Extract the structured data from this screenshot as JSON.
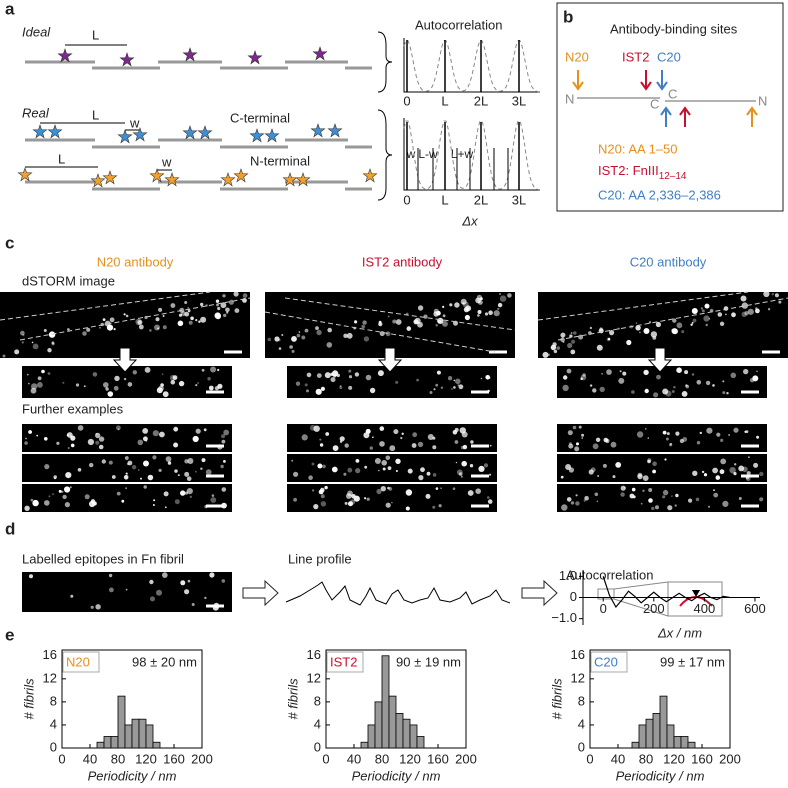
{
  "panels": [
    "a",
    "b",
    "c",
    "d",
    "e"
  ],
  "panel_a": {
    "ideal": "Ideal",
    "ideal_L": "L",
    "real": "Real",
    "c_L": "L",
    "c_w": "w",
    "c_terminal": "C-terminal",
    "n_L": "L",
    "n_w": "w",
    "n_terminal": "N-terminal",
    "autocorrelation": "Autocorrelation",
    "ticks_top": [
      "0",
      "L",
      "2L",
      "3L"
    ],
    "peaks_bottom": [
      "w",
      "L-w",
      "L+w"
    ],
    "ticks_bottom": [
      "0",
      "L",
      "2L",
      "3L"
    ],
    "x_label": "Δx"
  },
  "panel_b": {
    "title": "Antibody-binding sites",
    "n20": "N20",
    "ist2": "IST2",
    "c20": "C20",
    "n_left": "N",
    "c_left": "C",
    "c_right": "C",
    "n_right": "N",
    "n20_site": "N20: AA 1–50",
    "ist2_site": "IST2: FnIII",
    "ist2_sub": "12–14",
    "c20_site": "C20: AA 2,336–2,386"
  },
  "panel_c": {
    "headings": [
      "N20 antibody",
      "IST2 antibody",
      "C20 antibody"
    ],
    "dstorm": "dSTORM image",
    "further": "Further examples"
  },
  "panel_d": {
    "labelled": "Labelled epitopes in Fn fibril",
    "line_profile": "Line profile"
  },
  "chart_data": [
    {
      "type": "line",
      "title": "Autocorrelation",
      "x_label": "Δx / nm",
      "color": "#000000",
      "x": [
        0,
        25,
        50,
        75,
        100,
        125,
        150,
        175,
        200,
        225,
        250,
        275,
        300,
        325,
        350,
        375,
        400,
        425,
        450,
        475,
        500
      ],
      "values": [
        1.0,
        0.1,
        -0.45,
        -0.1,
        0.3,
        0.05,
        -0.25,
        0.0,
        0.25,
        0.0,
        -0.2,
        0.0,
        0.2,
        0.0,
        -0.15,
        0.05,
        0.2,
        0.0,
        -0.1,
        0.05,
        0.0
      ],
      "xlim": [
        -80,
        620
      ],
      "ylim": [
        -1.3,
        1.3
      ],
      "xticks": [
        0,
        200,
        400,
        600
      ],
      "yticks": [
        {
          "value": 1,
          "label": "1.0"
        },
        0,
        {
          "value": -1,
          "label": "−1.0"
        }
      ]
    },
    {
      "type": "histogram",
      "label": "N20",
      "label_color": "#e8901e",
      "annotation": "98 ± 20 nm",
      "bins": [
        50,
        60,
        70,
        80,
        90,
        100,
        110,
        120,
        130,
        140
      ],
      "counts": [
        1,
        2,
        2,
        9,
        4,
        5,
        5,
        4,
        1
      ],
      "color": "#999999",
      "xlim": [
        0,
        200
      ],
      "ylim": [
        0,
        17
      ],
      "xticks": [
        0,
        40,
        80,
        120,
        160,
        200
      ],
      "yticks": [
        0,
        4,
        8,
        12,
        16
      ],
      "x_label": "Periodicity / nm",
      "y_label": "# fibrils"
    },
    {
      "type": "histogram",
      "label": "IST2",
      "label_color": "#c8102e",
      "annotation": "90 ± 19 nm",
      "bins": [
        50,
        60,
        70,
        80,
        90,
        100,
        110,
        120,
        130,
        140
      ],
      "counts": [
        1,
        4,
        8,
        16,
        9,
        6,
        5,
        4,
        2
      ],
      "color": "#999999",
      "xlim": [
        0,
        200
      ],
      "ylim": [
        0,
        17
      ],
      "xticks": [
        0,
        40,
        80,
        120,
        160,
        200
      ],
      "yticks": [
        0,
        4,
        8,
        12,
        16
      ],
      "x_label": "Periodicity / nm",
      "y_label": "# fibrils"
    },
    {
      "type": "histogram",
      "label": "C20",
      "label_color": "#3f7fc4",
      "annotation": "99 ± 17 nm",
      "bins": [
        60,
        70,
        80,
        90,
        100,
        110,
        120,
        130,
        140,
        150
      ],
      "counts": [
        1,
        4,
        5,
        6,
        9,
        4,
        2,
        2,
        1
      ],
      "color": "#999999",
      "xlim": [
        0,
        200
      ],
      "ylim": [
        0,
        17
      ],
      "xticks": [
        0,
        40,
        80,
        120,
        160,
        200
      ],
      "yticks": [
        0,
        4,
        8,
        12,
        16
      ],
      "x_label": "Periodicity / nm",
      "y_label": "# fibrils"
    }
  ]
}
